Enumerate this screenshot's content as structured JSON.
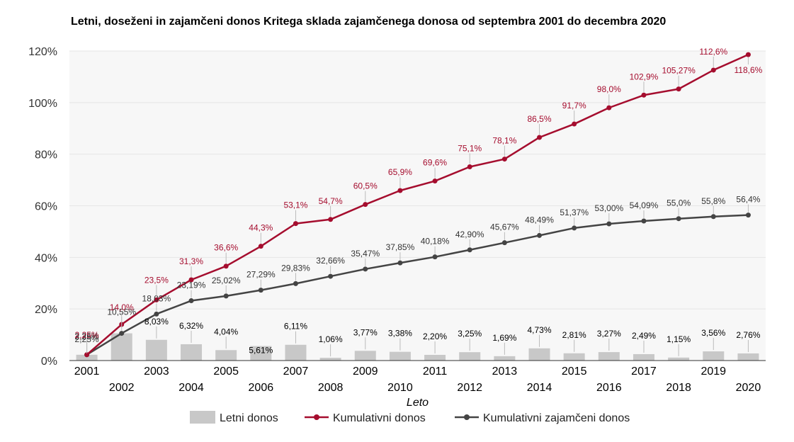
{
  "chart_data": {
    "type": "bar+line",
    "title": "Letni, doseženi in zajamčeni donos Kritega sklada zajamčenega donosa od septembra 2001 do decembra 2020",
    "xlabel": "Leto",
    "ylabel": "",
    "ylim": [
      0,
      120
    ],
    "yticks": [
      "0%",
      "20%",
      "40%",
      "60%",
      "80%",
      "100%",
      "120%"
    ],
    "grid": true,
    "legend_position": "bottom",
    "categories": [
      "2001",
      "2002",
      "2003",
      "2004",
      "2005",
      "2006",
      "2007",
      "2008",
      "2009",
      "2010",
      "2011",
      "2012",
      "2013",
      "2014",
      "2015",
      "2016",
      "2017",
      "2018",
      "2019",
      "2020"
    ],
    "series": [
      {
        "name": "Letni donos",
        "kind": "bar",
        "color": "#c8c8c8",
        "values": [
          2.25,
          10.55,
          8.03,
          6.32,
          4.04,
          5.61,
          6.11,
          1.06,
          3.77,
          3.38,
          2.2,
          3.25,
          1.69,
          4.73,
          2.81,
          3.27,
          2.49,
          1.15,
          3.56,
          2.76
        ],
        "labels": [
          "2,25%",
          "10,55%",
          "8,03%",
          "6,32%",
          "4,04%",
          "5,61%",
          "6,11%",
          "1,06%",
          "3,77%",
          "3,38%",
          "2,20%",
          "3,25%",
          "1,69%",
          "4,73%",
          "2,81%",
          "3,27%",
          "2,49%",
          "1,15%",
          "3,56%",
          "2,76%"
        ]
      },
      {
        "name": "Kumulativni donos",
        "kind": "line",
        "color": "#a50d2e",
        "values": [
          2.25,
          14.0,
          23.5,
          31.3,
          36.6,
          44.3,
          53.1,
          54.7,
          60.5,
          65.9,
          69.6,
          75.1,
          78.1,
          86.5,
          91.7,
          98.0,
          102.9,
          105.27,
          112.6,
          118.6
        ],
        "labels": [
          "2,25%",
          "14,0%",
          "23,5%",
          "31,3%",
          "36,6%",
          "44,3%",
          "53,1%",
          "54,7%",
          "60,5%",
          "65,9%",
          "69,6%",
          "75,1%",
          "78,1%",
          "86,5%",
          "91,7%",
          "98,0%",
          "102,9%",
          "105,27%",
          "112,6%",
          "118,6%"
        ]
      },
      {
        "name": "Kumulativni zajamčeni donos",
        "kind": "line",
        "color": "#444444",
        "values": [
          2.25,
          10.55,
          18.03,
          23.19,
          25.02,
          27.29,
          29.83,
          32.66,
          35.47,
          37.85,
          40.18,
          42.9,
          45.67,
          48.49,
          51.37,
          53.0,
          54.09,
          55.0,
          55.8,
          56.4
        ],
        "labels": [
          "2,25%",
          "10,55%",
          "18,03%",
          "23,19%",
          "25,02%",
          "27,29%",
          "29,83%",
          "32,66%",
          "35,47%",
          "37,85%",
          "40,18%",
          "42,90%",
          "45,67%",
          "48,49%",
          "51,37%",
          "53,00%",
          "54,09%",
          "55,0%",
          "55,8%",
          "56,4%"
        ]
      }
    ]
  }
}
